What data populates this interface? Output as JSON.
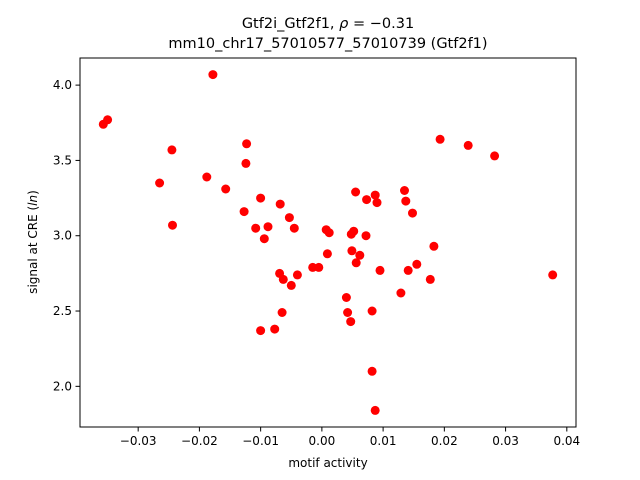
{
  "chart_data": {
    "type": "scatter",
    "title_line1": "Gtf2i_Gtf2f1, ρ = −0.31",
    "title_line2": "mm10_chr17_57010577_57010739 (Gtf2f1)",
    "xlabel": "motif activity",
    "ylabel": "signal at CRE (ln)",
    "xlim": [
      -0.0395,
      0.0415
    ],
    "ylim": [
      1.73,
      4.18
    ],
    "x_ticks": [
      -0.03,
      -0.02,
      -0.01,
      0.0,
      0.01,
      0.02,
      0.03,
      0.04
    ],
    "x_tick_labels": [
      "−0.03",
      "−0.02",
      "−0.01",
      "0.00",
      "0.01",
      "0.02",
      "0.03",
      "0.04"
    ],
    "y_ticks": [
      2.0,
      2.5,
      3.0,
      3.5,
      4.0
    ],
    "y_tick_labels": [
      "2.0",
      "2.5",
      "3.0",
      "3.5",
      "4.0"
    ],
    "marker_color": "#ff0000",
    "grid": false,
    "points": [
      {
        "x": -0.0357,
        "y": 3.74
      },
      {
        "x": -0.035,
        "y": 3.77
      },
      {
        "x": -0.0265,
        "y": 3.35
      },
      {
        "x": -0.0245,
        "y": 3.57
      },
      {
        "x": -0.0244,
        "y": 3.07
      },
      {
        "x": -0.0178,
        "y": 4.07
      },
      {
        "x": -0.0188,
        "y": 3.39
      },
      {
        "x": -0.0157,
        "y": 3.31
      },
      {
        "x": -0.0123,
        "y": 3.61
      },
      {
        "x": -0.0124,
        "y": 3.48
      },
      {
        "x": -0.0127,
        "y": 3.16
      },
      {
        "x": -0.01,
        "y": 3.25
      },
      {
        "x": -0.0108,
        "y": 3.05
      },
      {
        "x": -0.0094,
        "y": 2.98
      },
      {
        "x": -0.0088,
        "y": 3.06
      },
      {
        "x": -0.0068,
        "y": 3.21
      },
      {
        "x": -0.0053,
        "y": 3.12
      },
      {
        "x": -0.0045,
        "y": 3.05
      },
      {
        "x": -0.0069,
        "y": 2.75
      },
      {
        "x": -0.0063,
        "y": 2.71
      },
      {
        "x": -0.004,
        "y": 2.74
      },
      {
        "x": -0.005,
        "y": 2.67
      },
      {
        "x": -0.0065,
        "y": 2.49
      },
      {
        "x": -0.01,
        "y": 2.37
      },
      {
        "x": -0.0077,
        "y": 2.38
      },
      {
        "x": -0.0015,
        "y": 2.79
      },
      {
        "x": -0.0005,
        "y": 2.79
      },
      {
        "x": 0.0007,
        "y": 3.04
      },
      {
        "x": 0.0012,
        "y": 3.02
      },
      {
        "x": 0.0009,
        "y": 2.88
      },
      {
        "x": 0.0048,
        "y": 3.01
      },
      {
        "x": 0.0052,
        "y": 3.03
      },
      {
        "x": 0.0055,
        "y": 3.29
      },
      {
        "x": 0.0073,
        "y": 3.24
      },
      {
        "x": 0.0087,
        "y": 3.27
      },
      {
        "x": 0.009,
        "y": 3.22
      },
      {
        "x": 0.0072,
        "y": 3.0
      },
      {
        "x": 0.0049,
        "y": 2.9
      },
      {
        "x": 0.0062,
        "y": 2.87
      },
      {
        "x": 0.0056,
        "y": 2.82
      },
      {
        "x": 0.0095,
        "y": 2.77
      },
      {
        "x": 0.004,
        "y": 2.59
      },
      {
        "x": 0.0042,
        "y": 2.49
      },
      {
        "x": 0.0047,
        "y": 2.43
      },
      {
        "x": 0.0082,
        "y": 2.5
      },
      {
        "x": 0.0082,
        "y": 2.1
      },
      {
        "x": 0.0087,
        "y": 1.84
      },
      {
        "x": 0.0135,
        "y": 3.3
      },
      {
        "x": 0.0137,
        "y": 3.23
      },
      {
        "x": 0.0148,
        "y": 3.15
      },
      {
        "x": 0.0141,
        "y": 2.77
      },
      {
        "x": 0.0155,
        "y": 2.81
      },
      {
        "x": 0.0129,
        "y": 2.62
      },
      {
        "x": 0.0183,
        "y": 2.93
      },
      {
        "x": 0.0177,
        "y": 2.71
      },
      {
        "x": 0.0193,
        "y": 3.64
      },
      {
        "x": 0.0239,
        "y": 3.6
      },
      {
        "x": 0.0282,
        "y": 3.53
      },
      {
        "x": 0.0377,
        "y": 2.74
      }
    ]
  }
}
